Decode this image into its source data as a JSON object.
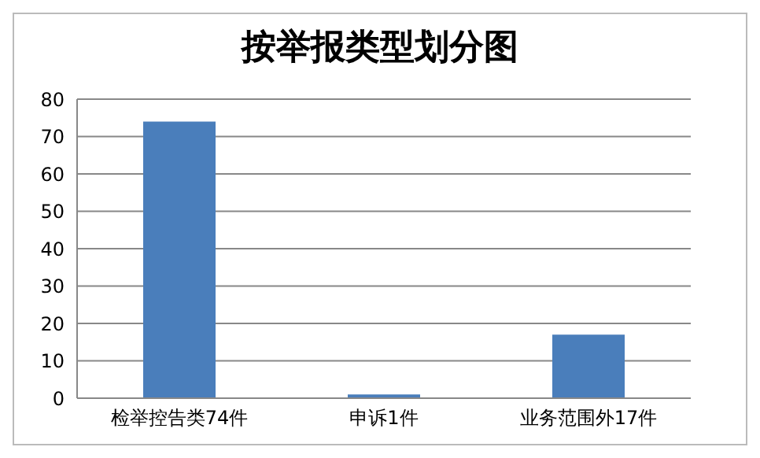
{
  "chart_data": {
    "type": "bar",
    "title": "按举报类型划分图",
    "categories": [
      "检举控告类74件",
      "申诉1件",
      "业务范围外17件"
    ],
    "values": [
      74,
      1,
      17
    ],
    "color": "#4a7ebb",
    "ylim": [
      0,
      80
    ],
    "yticks": [
      0,
      10,
      20,
      30,
      40,
      50,
      60,
      70,
      80
    ],
    "grid": "y"
  }
}
